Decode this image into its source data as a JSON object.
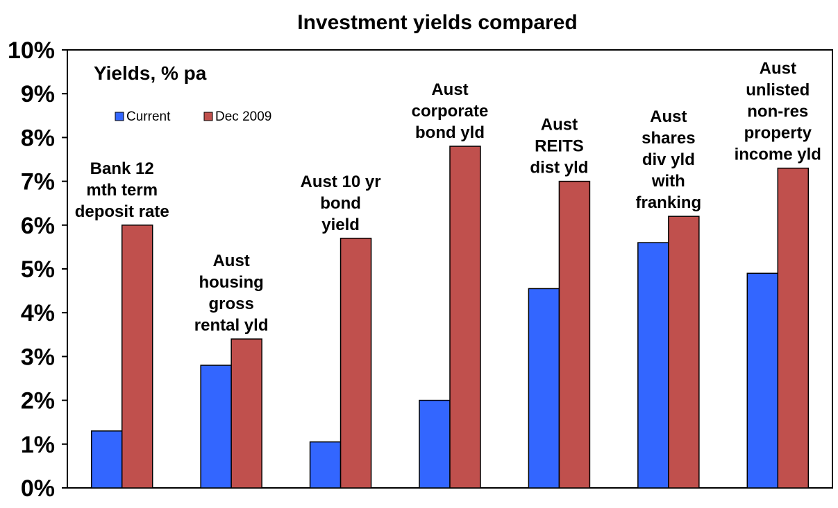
{
  "chart_data": {
    "type": "bar",
    "title": "Investment yields compared",
    "subtitle": "Yields, % pa",
    "categories": [
      [
        "Bank 12",
        "mth term",
        "deposit rate"
      ],
      [
        "Aust",
        "housing",
        "gross",
        "rental yld"
      ],
      [
        "Aust 10 yr",
        "bond",
        "yield"
      ],
      [
        "Aust",
        "corporate",
        "bond yld"
      ],
      [
        "Aust",
        "REITS",
        "dist yld"
      ],
      [
        "Aust",
        "shares",
        "div yld",
        "with",
        "franking"
      ],
      [
        "Aust",
        "unlisted",
        "non-res",
        "property",
        "income yld"
      ]
    ],
    "series": [
      {
        "name": "Current",
        "color": "#3366ff",
        "values": [
          1.3,
          2.8,
          1.05,
          2.0,
          4.55,
          5.6,
          4.9
        ]
      },
      {
        "name": "Dec 2009",
        "color": "#c0504d",
        "values": [
          6.0,
          3.4,
          5.7,
          7.8,
          7.0,
          6.2,
          7.3
        ]
      }
    ],
    "ylim": [
      0,
      10
    ],
    "yticks": [
      "0%",
      "1%",
      "2%",
      "3%",
      "4%",
      "5%",
      "6%",
      "7%",
      "8%",
      "9%",
      "10%"
    ],
    "legend": "top-left",
    "grid": false
  }
}
